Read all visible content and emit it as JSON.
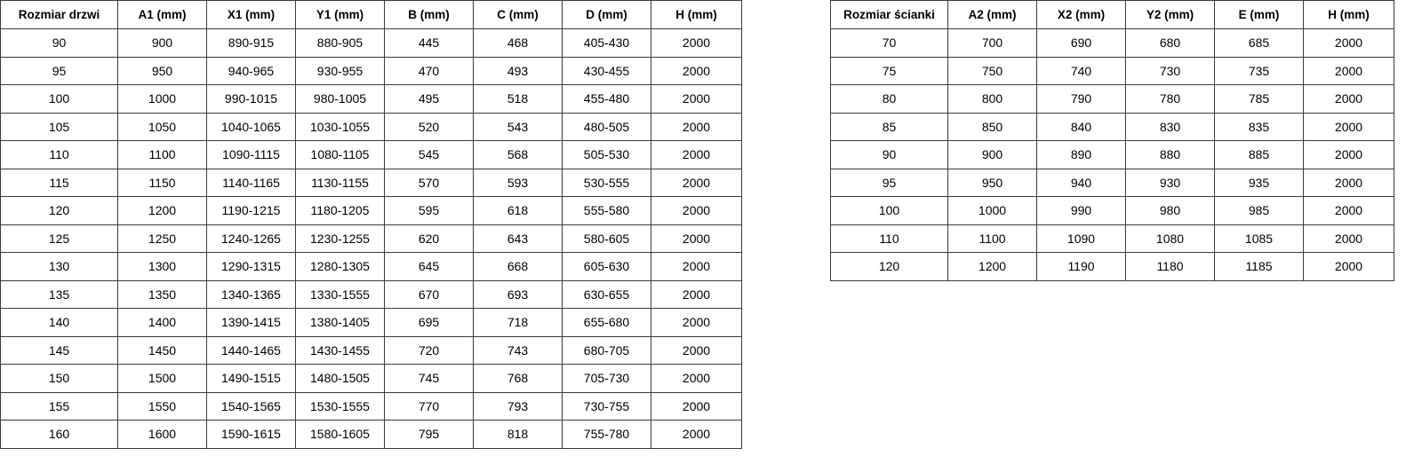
{
  "door_table": {
    "headers": [
      "Rozmiar drzwi",
      "A1 (mm)",
      "X1 (mm)",
      "Y1 (mm)",
      "B (mm)",
      "C (mm)",
      "D (mm)",
      "H (mm)"
    ],
    "rows": [
      [
        "90",
        "900",
        "890-915",
        "880-905",
        "445",
        "468",
        "405-430",
        "2000"
      ],
      [
        "95",
        "950",
        "940-965",
        "930-955",
        "470",
        "493",
        "430-455",
        "2000"
      ],
      [
        "100",
        "1000",
        "990-1015",
        "980-1005",
        "495",
        "518",
        "455-480",
        "2000"
      ],
      [
        "105",
        "1050",
        "1040-1065",
        "1030-1055",
        "520",
        "543",
        "480-505",
        "2000"
      ],
      [
        "110",
        "1100",
        "1090-1115",
        "1080-1105",
        "545",
        "568",
        "505-530",
        "2000"
      ],
      [
        "115",
        "1150",
        "1140-1165",
        "1130-1155",
        "570",
        "593",
        "530-555",
        "2000"
      ],
      [
        "120",
        "1200",
        "1190-1215",
        "1180-1205",
        "595",
        "618",
        "555-580",
        "2000"
      ],
      [
        "125",
        "1250",
        "1240-1265",
        "1230-1255",
        "620",
        "643",
        "580-605",
        "2000"
      ],
      [
        "130",
        "1300",
        "1290-1315",
        "1280-1305",
        "645",
        "668",
        "605-630",
        "2000"
      ],
      [
        "135",
        "1350",
        "1340-1365",
        "1330-1555",
        "670",
        "693",
        "630-655",
        "2000"
      ],
      [
        "140",
        "1400",
        "1390-1415",
        "1380-1405",
        "695",
        "718",
        "655-680",
        "2000"
      ],
      [
        "145",
        "1450",
        "1440-1465",
        "1430-1455",
        "720",
        "743",
        "680-705",
        "2000"
      ],
      [
        "150",
        "1500",
        "1490-1515",
        "1480-1505",
        "745",
        "768",
        "705-730",
        "2000"
      ],
      [
        "155",
        "1550",
        "1540-1565",
        "1530-1555",
        "770",
        "793",
        "730-755",
        "2000"
      ],
      [
        "160",
        "1600",
        "1590-1615",
        "1580-1605",
        "795",
        "818",
        "755-780",
        "2000"
      ]
    ]
  },
  "wall_table": {
    "headers": [
      "Rozmiar ścianki",
      "A2 (mm)",
      "X2 (mm)",
      "Y2 (mm)",
      "E (mm)",
      "H (mm)"
    ],
    "rows": [
      [
        "70",
        "700",
        "690",
        "680",
        "685",
        "2000"
      ],
      [
        "75",
        "750",
        "740",
        "730",
        "735",
        "2000"
      ],
      [
        "80",
        "800",
        "790",
        "780",
        "785",
        "2000"
      ],
      [
        "85",
        "850",
        "840",
        "830",
        "835",
        "2000"
      ],
      [
        "90",
        "900",
        "890",
        "880",
        "885",
        "2000"
      ],
      [
        "95",
        "950",
        "940",
        "930",
        "935",
        "2000"
      ],
      [
        "100",
        "1000",
        "990",
        "980",
        "985",
        "2000"
      ],
      [
        "110",
        "1100",
        "1090",
        "1080",
        "1085",
        "2000"
      ],
      [
        "120",
        "1200",
        "1190",
        "1180",
        "1185",
        "2000"
      ]
    ]
  }
}
